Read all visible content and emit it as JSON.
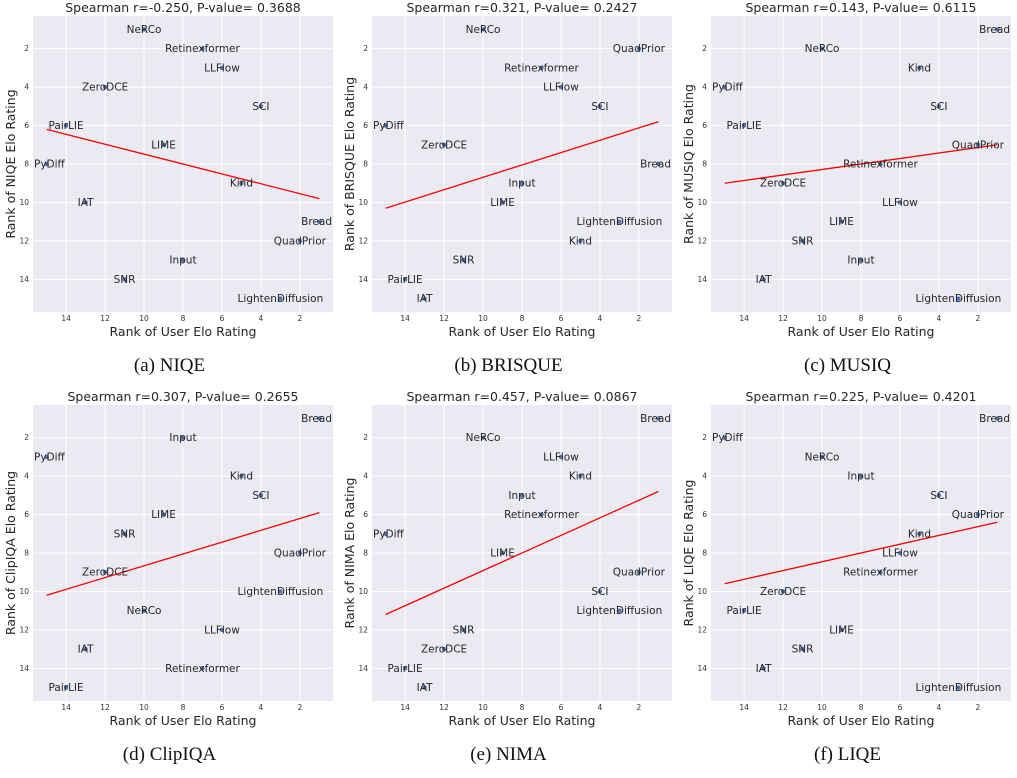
{
  "chart_data": [
    {
      "type": "scatter",
      "caption": "(a) NIQE",
      "title": "Spearman r=-0.250, P-value= 0.3688",
      "xlabel": "Rank of User Elo Rating",
      "ylabel": "Rank of NIQE Elo Rating",
      "xlim": [
        15.7,
        0.3
      ],
      "ylim": [
        15.7,
        0.3
      ],
      "xticks": [
        14,
        12,
        10,
        8,
        6,
        4,
        2
      ],
      "yticks": [
        2,
        4,
        6,
        8,
        10,
        12,
        14
      ],
      "grid": true,
      "trendline": {
        "x": [
          15,
          1
        ],
        "y": [
          6.2,
          9.8
        ]
      },
      "points": [
        {
          "label": "NeRCo",
          "x": 10,
          "y": 1
        },
        {
          "label": "Retinexformer",
          "x": 7,
          "y": 2
        },
        {
          "label": "LLFlow",
          "x": 6,
          "y": 3
        },
        {
          "label": "ZeroDCE",
          "x": 12,
          "y": 4
        },
        {
          "label": "SCI",
          "x": 4,
          "y": 5
        },
        {
          "label": "PairLIE",
          "x": 14,
          "y": 6
        },
        {
          "label": "LIME",
          "x": 9,
          "y": 7
        },
        {
          "label": "PyDiff",
          "x": 15,
          "y": 8
        },
        {
          "label": "Kind",
          "x": 5,
          "y": 9
        },
        {
          "label": "IAT",
          "x": 13,
          "y": 10
        },
        {
          "label": "Bread",
          "x": 1,
          "y": 11
        },
        {
          "label": "QuadPrior",
          "x": 2,
          "y": 12
        },
        {
          "label": "Input",
          "x": 8,
          "y": 13
        },
        {
          "label": "SNR",
          "x": 11,
          "y": 14
        },
        {
          "label": "LightenDiffusion",
          "x": 3,
          "y": 15
        }
      ]
    },
    {
      "type": "scatter",
      "caption": "(b) BRISQUE",
      "title": "Spearman r=0.321, P-value= 0.2427",
      "xlabel": "Rank of User Elo Rating",
      "ylabel": "Rank of BRISQUE Elo Rating",
      "xlim": [
        15.7,
        0.3
      ],
      "ylim": [
        15.7,
        0.3
      ],
      "xticks": [
        14,
        12,
        10,
        8,
        6,
        4,
        2
      ],
      "yticks": [
        2,
        4,
        6,
        8,
        10,
        12,
        14
      ],
      "grid": true,
      "trendline": {
        "x": [
          15,
          1
        ],
        "y": [
          10.3,
          5.8
        ]
      },
      "points": [
        {
          "label": "NeRCo",
          "x": 10,
          "y": 1
        },
        {
          "label": "QuadPrior",
          "x": 2,
          "y": 2
        },
        {
          "label": "Retinexformer",
          "x": 7,
          "y": 3
        },
        {
          "label": "LLFlow",
          "x": 6,
          "y": 4
        },
        {
          "label": "SCI",
          "x": 4,
          "y": 5
        },
        {
          "label": "PyDiff",
          "x": 15,
          "y": 6
        },
        {
          "label": "ZeroDCE",
          "x": 12,
          "y": 7
        },
        {
          "label": "Bread",
          "x": 1,
          "y": 8
        },
        {
          "label": "Input",
          "x": 8,
          "y": 9
        },
        {
          "label": "LIME",
          "x": 9,
          "y": 10
        },
        {
          "label": "LightenDiffusion",
          "x": 3,
          "y": 11
        },
        {
          "label": "Kind",
          "x": 5,
          "y": 12
        },
        {
          "label": "SNR",
          "x": 11,
          "y": 13
        },
        {
          "label": "PairLIE",
          "x": 14,
          "y": 14
        },
        {
          "label": "IAT",
          "x": 13,
          "y": 15
        }
      ]
    },
    {
      "type": "scatter",
      "caption": "(c) MUSIQ",
      "title": "Spearman r=0.143, P-value= 0.6115",
      "xlabel": "Rank of User Elo Rating",
      "ylabel": "Rank of MUSIQ Elo Rating",
      "xlim": [
        15.7,
        0.3
      ],
      "ylim": [
        15.7,
        0.3
      ],
      "xticks": [
        14,
        12,
        10,
        8,
        6,
        4,
        2
      ],
      "yticks": [
        2,
        4,
        6,
        8,
        10,
        12,
        14
      ],
      "grid": true,
      "trendline": {
        "x": [
          15,
          1
        ],
        "y": [
          9.0,
          7.0
        ]
      },
      "points": [
        {
          "label": "Bread",
          "x": 1,
          "y": 1
        },
        {
          "label": "NeRCo",
          "x": 10,
          "y": 2
        },
        {
          "label": "Kind",
          "x": 5,
          "y": 3
        },
        {
          "label": "PyDiff",
          "x": 15,
          "y": 4
        },
        {
          "label": "SCI",
          "x": 4,
          "y": 5
        },
        {
          "label": "PairLIE",
          "x": 14,
          "y": 6
        },
        {
          "label": "QuadPrior",
          "x": 2,
          "y": 7
        },
        {
          "label": "Retinexformer",
          "x": 7,
          "y": 8
        },
        {
          "label": "ZeroDCE",
          "x": 12,
          "y": 9
        },
        {
          "label": "LLFlow",
          "x": 6,
          "y": 10
        },
        {
          "label": "LIME",
          "x": 9,
          "y": 11
        },
        {
          "label": "SNR",
          "x": 11,
          "y": 12
        },
        {
          "label": "Input",
          "x": 8,
          "y": 13
        },
        {
          "label": "IAT",
          "x": 13,
          "y": 14
        },
        {
          "label": "LightenDiffusion",
          "x": 3,
          "y": 15
        }
      ]
    },
    {
      "type": "scatter",
      "caption": "(d) ClipIQA",
      "title": "Spearman r=0.307, P-value= 0.2655",
      "xlabel": "Rank of User Elo Rating",
      "ylabel": "Rank of ClipIQA Elo Rating",
      "xlim": [
        15.7,
        0.3
      ],
      "ylim": [
        15.7,
        0.3
      ],
      "xticks": [
        14,
        12,
        10,
        8,
        6,
        4,
        2
      ],
      "yticks": [
        2,
        4,
        6,
        8,
        10,
        12,
        14
      ],
      "grid": true,
      "trendline": {
        "x": [
          15,
          1
        ],
        "y": [
          10.2,
          5.9
        ]
      },
      "points": [
        {
          "label": "Bread",
          "x": 1,
          "y": 1
        },
        {
          "label": "Input",
          "x": 8,
          "y": 2
        },
        {
          "label": "PyDiff",
          "x": 15,
          "y": 3
        },
        {
          "label": "Kind",
          "x": 5,
          "y": 4
        },
        {
          "label": "SCI",
          "x": 4,
          "y": 5
        },
        {
          "label": "LIME",
          "x": 9,
          "y": 6
        },
        {
          "label": "SNR",
          "x": 11,
          "y": 7
        },
        {
          "label": "QuadPrior",
          "x": 2,
          "y": 8
        },
        {
          "label": "ZeroDCE",
          "x": 12,
          "y": 9
        },
        {
          "label": "LightenDiffusion",
          "x": 3,
          "y": 10
        },
        {
          "label": "NeRCo",
          "x": 10,
          "y": 11
        },
        {
          "label": "LLFlow",
          "x": 6,
          "y": 12
        },
        {
          "label": "IAT",
          "x": 13,
          "y": 13
        },
        {
          "label": "Retinexformer",
          "x": 7,
          "y": 14
        },
        {
          "label": "PairLIE",
          "x": 14,
          "y": 15
        }
      ]
    },
    {
      "type": "scatter",
      "caption": "(e) NIMA",
      "title": "Spearman r=0.457, P-value= 0.0867",
      "xlabel": "Rank of User Elo Rating",
      "ylabel": "Rank of NIMA Elo Rating",
      "xlim": [
        15.7,
        0.3
      ],
      "ylim": [
        15.7,
        0.3
      ],
      "xticks": [
        14,
        12,
        10,
        8,
        6,
        4,
        2
      ],
      "yticks": [
        2,
        4,
        6,
        8,
        10,
        12,
        14
      ],
      "grid": true,
      "trendline": {
        "x": [
          15,
          1
        ],
        "y": [
          11.2,
          4.8
        ]
      },
      "points": [
        {
          "label": "Bread",
          "x": 1,
          "y": 1
        },
        {
          "label": "NeRCo",
          "x": 10,
          "y": 2
        },
        {
          "label": "LLFlow",
          "x": 6,
          "y": 3
        },
        {
          "label": "Kind",
          "x": 5,
          "y": 4
        },
        {
          "label": "Input",
          "x": 8,
          "y": 5
        },
        {
          "label": "Retinexformer",
          "x": 7,
          "y": 6
        },
        {
          "label": "PyDiff",
          "x": 15,
          "y": 7
        },
        {
          "label": "LIME",
          "x": 9,
          "y": 8
        },
        {
          "label": "QuadPrior",
          "x": 2,
          "y": 9
        },
        {
          "label": "SCI",
          "x": 4,
          "y": 10
        },
        {
          "label": "LightenDiffusion",
          "x": 3,
          "y": 11
        },
        {
          "label": "SNR",
          "x": 11,
          "y": 12
        },
        {
          "label": "ZeroDCE",
          "x": 12,
          "y": 13
        },
        {
          "label": "PairLIE",
          "x": 14,
          "y": 14
        },
        {
          "label": "IAT",
          "x": 13,
          "y": 15
        }
      ]
    },
    {
      "type": "scatter",
      "caption": "(f) LIQE",
      "title": "Spearman r=0.225, P-value= 0.4201",
      "xlabel": "Rank of User Elo Rating",
      "ylabel": "Rank of LIQE Elo Rating",
      "xlim": [
        15.7,
        0.3
      ],
      "ylim": [
        15.7,
        0.3
      ],
      "xticks": [
        14,
        12,
        10,
        8,
        6,
        4,
        2
      ],
      "yticks": [
        2,
        4,
        6,
        8,
        10,
        12,
        14
      ],
      "grid": true,
      "trendline": {
        "x": [
          15,
          1
        ],
        "y": [
          9.6,
          6.4
        ]
      },
      "points": [
        {
          "label": "Bread",
          "x": 1,
          "y": 1
        },
        {
          "label": "PyDiff",
          "x": 15,
          "y": 2
        },
        {
          "label": "NeRCo",
          "x": 10,
          "y": 3
        },
        {
          "label": "Input",
          "x": 8,
          "y": 4
        },
        {
          "label": "SCI",
          "x": 4,
          "y": 5
        },
        {
          "label": "QuadPrior",
          "x": 2,
          "y": 6
        },
        {
          "label": "Kind",
          "x": 5,
          "y": 7
        },
        {
          "label": "LLFlow",
          "x": 6,
          "y": 8
        },
        {
          "label": "Retinexformer",
          "x": 7,
          "y": 9
        },
        {
          "label": "ZeroDCE",
          "x": 12,
          "y": 10
        },
        {
          "label": "PairLIE",
          "x": 14,
          "y": 11
        },
        {
          "label": "LIME",
          "x": 9,
          "y": 12
        },
        {
          "label": "SNR",
          "x": 11,
          "y": 13
        },
        {
          "label": "IAT",
          "x": 13,
          "y": 14
        },
        {
          "label": "LightenDiffusion",
          "x": 3,
          "y": 15
        }
      ]
    }
  ],
  "colors": {
    "plot_background": "#eaeaf2",
    "grid": "#ffffff",
    "point": "#4c72b0",
    "trendline": "#ff0000"
  }
}
